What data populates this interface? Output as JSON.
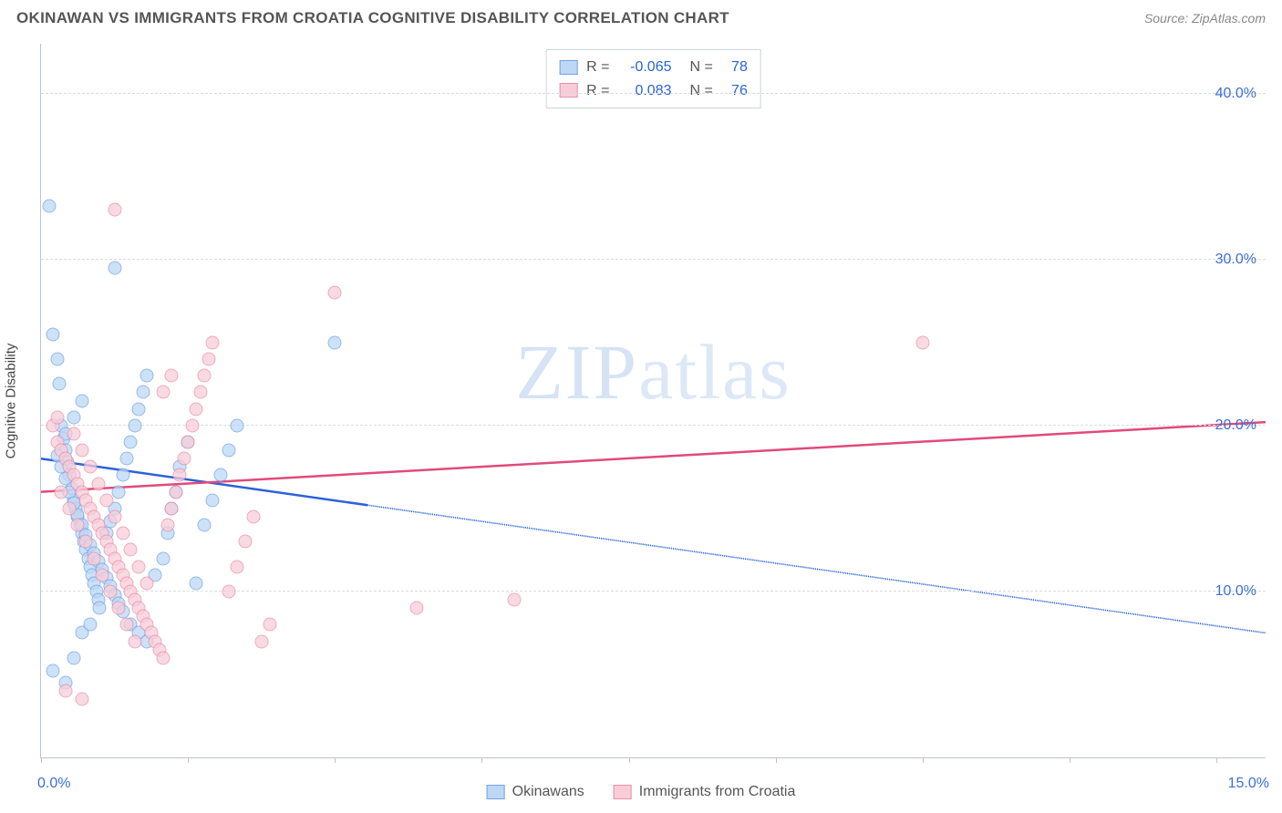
{
  "header": {
    "title": "OKINAWAN VS IMMIGRANTS FROM CROATIA COGNITIVE DISABILITY CORRELATION CHART",
    "source": "Source: ZipAtlas.com"
  },
  "watermark": {
    "bold": "ZIP",
    "light": "atlas"
  },
  "chart": {
    "type": "scatter",
    "ylabel": "Cognitive Disability",
    "xlim": [
      0,
      15
    ],
    "ylim": [
      0,
      43
    ],
    "x_ticks_pct": [
      0,
      12,
      24,
      36,
      48,
      60,
      72,
      84,
      96
    ],
    "xaxis_labels": {
      "start": "0.0%",
      "end": "15.0%"
    },
    "y_grid": [
      {
        "y": 10,
        "label": "10.0%"
      },
      {
        "y": 20,
        "label": "20.0%"
      },
      {
        "y": 30,
        "label": "30.0%"
      },
      {
        "y": 40,
        "label": "40.0%"
      }
    ],
    "background_color": "#ffffff",
    "grid_color": "#d9dde0",
    "axis_color": "#b9c6cf",
    "tick_label_color": "#3b6fd6",
    "series": [
      {
        "name": "Okinawans",
        "fill": "#bdd7f5",
        "stroke": "#6fa3e8",
        "line_color": "#2b62d8",
        "r_value": "-0.065",
        "n_value": "78",
        "trend": {
          "y_at_x0": 18.0,
          "y_at_xmax": 7.5,
          "solid_until_x": 4.0
        },
        "points": [
          [
            0.1,
            33.2
          ],
          [
            0.15,
            25.5
          ],
          [
            0.2,
            24.0
          ],
          [
            0.22,
            22.5
          ],
          [
            0.25,
            20.0
          ],
          [
            0.28,
            19.2
          ],
          [
            0.3,
            18.5
          ],
          [
            0.32,
            17.8
          ],
          [
            0.35,
            17.0
          ],
          [
            0.38,
            16.2
          ],
          [
            0.4,
            15.5
          ],
          [
            0.42,
            15.0
          ],
          [
            0.45,
            14.5
          ],
          [
            0.48,
            14.0
          ],
          [
            0.5,
            13.5
          ],
          [
            0.52,
            13.0
          ],
          [
            0.55,
            12.5
          ],
          [
            0.58,
            12.0
          ],
          [
            0.6,
            11.5
          ],
          [
            0.62,
            11.0
          ],
          [
            0.65,
            10.5
          ],
          [
            0.68,
            10.0
          ],
          [
            0.7,
            9.5
          ],
          [
            0.72,
            9.0
          ],
          [
            0.15,
            5.2
          ],
          [
            0.3,
            4.5
          ],
          [
            0.4,
            6.0
          ],
          [
            0.5,
            7.5
          ],
          [
            0.6,
            8.0
          ],
          [
            0.8,
            13.5
          ],
          [
            0.85,
            14.2
          ],
          [
            0.9,
            15.0
          ],
          [
            0.95,
            16.0
          ],
          [
            1.0,
            17.0
          ],
          [
            1.05,
            18.0
          ],
          [
            1.1,
            19.0
          ],
          [
            1.15,
            20.0
          ],
          [
            1.2,
            21.0
          ],
          [
            1.25,
            22.0
          ],
          [
            1.3,
            23.0
          ],
          [
            0.9,
            29.5
          ],
          [
            1.4,
            11.0
          ],
          [
            1.5,
            12.0
          ],
          [
            1.55,
            13.5
          ],
          [
            1.6,
            15.0
          ],
          [
            1.65,
            16.0
          ],
          [
            1.7,
            17.5
          ],
          [
            1.8,
            19.0
          ],
          [
            1.9,
            10.5
          ],
          [
            2.0,
            14.0
          ],
          [
            2.1,
            15.5
          ],
          [
            2.2,
            17.0
          ],
          [
            2.3,
            18.5
          ],
          [
            2.4,
            20.0
          ],
          [
            3.6,
            25.0
          ],
          [
            0.2,
            18.2
          ],
          [
            0.25,
            17.5
          ],
          [
            0.3,
            16.8
          ],
          [
            0.35,
            16.0
          ],
          [
            0.4,
            15.3
          ],
          [
            0.45,
            14.6
          ],
          [
            0.5,
            14.0
          ],
          [
            0.55,
            13.4
          ],
          [
            0.6,
            12.8
          ],
          [
            0.65,
            12.3
          ],
          [
            0.7,
            11.8
          ],
          [
            0.75,
            11.3
          ],
          [
            0.8,
            10.8
          ],
          [
            0.85,
            10.3
          ],
          [
            0.9,
            9.8
          ],
          [
            0.95,
            9.3
          ],
          [
            1.0,
            8.8
          ],
          [
            1.1,
            8.0
          ],
          [
            1.2,
            7.5
          ],
          [
            1.3,
            7.0
          ],
          [
            0.3,
            19.5
          ],
          [
            0.4,
            20.5
          ],
          [
            0.5,
            21.5
          ]
        ]
      },
      {
        "name": "Immigrants from Croatia",
        "fill": "#f8cdd9",
        "stroke": "#e98fab",
        "line_color": "#e14a7a",
        "r_value": "0.083",
        "n_value": "76",
        "trend": {
          "y_at_x0": 16.0,
          "y_at_xmax": 20.2,
          "solid_until_x": 15.0
        },
        "points": [
          [
            0.9,
            33.0
          ],
          [
            0.15,
            20.0
          ],
          [
            0.2,
            19.0
          ],
          [
            0.25,
            18.5
          ],
          [
            0.3,
            18.0
          ],
          [
            0.35,
            17.5
          ],
          [
            0.4,
            17.0
          ],
          [
            0.45,
            16.5
          ],
          [
            0.5,
            16.0
          ],
          [
            0.55,
            15.5
          ],
          [
            0.6,
            15.0
          ],
          [
            0.65,
            14.5
          ],
          [
            0.7,
            14.0
          ],
          [
            0.75,
            13.5
          ],
          [
            0.8,
            13.0
          ],
          [
            0.85,
            12.5
          ],
          [
            0.9,
            12.0
          ],
          [
            0.95,
            11.5
          ],
          [
            1.0,
            11.0
          ],
          [
            1.05,
            10.5
          ],
          [
            1.1,
            10.0
          ],
          [
            1.15,
            9.5
          ],
          [
            1.2,
            9.0
          ],
          [
            1.25,
            8.5
          ],
          [
            1.3,
            8.0
          ],
          [
            1.35,
            7.5
          ],
          [
            1.4,
            7.0
          ],
          [
            1.45,
            6.5
          ],
          [
            1.5,
            6.0
          ],
          [
            0.5,
            3.5
          ],
          [
            0.3,
            4.0
          ],
          [
            1.55,
            14.0
          ],
          [
            1.6,
            15.0
          ],
          [
            1.65,
            16.0
          ],
          [
            1.7,
            17.0
          ],
          [
            1.75,
            18.0
          ],
          [
            1.8,
            19.0
          ],
          [
            1.85,
            20.0
          ],
          [
            1.9,
            21.0
          ],
          [
            1.95,
            22.0
          ],
          [
            2.0,
            23.0
          ],
          [
            2.05,
            24.0
          ],
          [
            2.1,
            25.0
          ],
          [
            1.5,
            22.0
          ],
          [
            1.6,
            23.0
          ],
          [
            2.3,
            10.0
          ],
          [
            2.4,
            11.5
          ],
          [
            2.5,
            13.0
          ],
          [
            2.6,
            14.5
          ],
          [
            2.7,
            7.0
          ],
          [
            2.8,
            8.0
          ],
          [
            3.6,
            28.0
          ],
          [
            4.6,
            9.0
          ],
          [
            5.8,
            9.5
          ],
          [
            10.8,
            25.0
          ],
          [
            0.4,
            19.5
          ],
          [
            0.5,
            18.5
          ],
          [
            0.6,
            17.5
          ],
          [
            0.7,
            16.5
          ],
          [
            0.8,
            15.5
          ],
          [
            0.9,
            14.5
          ],
          [
            1.0,
            13.5
          ],
          [
            1.1,
            12.5
          ],
          [
            1.2,
            11.5
          ],
          [
            1.3,
            10.5
          ],
          [
            0.25,
            16.0
          ],
          [
            0.35,
            15.0
          ],
          [
            0.45,
            14.0
          ],
          [
            0.55,
            13.0
          ],
          [
            0.65,
            12.0
          ],
          [
            0.75,
            11.0
          ],
          [
            0.85,
            10.0
          ],
          [
            0.95,
            9.0
          ],
          [
            1.05,
            8.0
          ],
          [
            1.15,
            7.0
          ],
          [
            0.2,
            20.5
          ]
        ]
      }
    ]
  },
  "legend_bottom": [
    {
      "label": "Okinawans",
      "fill": "#bdd7f5",
      "stroke": "#6fa3e8"
    },
    {
      "label": "Immigrants from Croatia",
      "fill": "#f8cdd9",
      "stroke": "#e98fab"
    }
  ]
}
